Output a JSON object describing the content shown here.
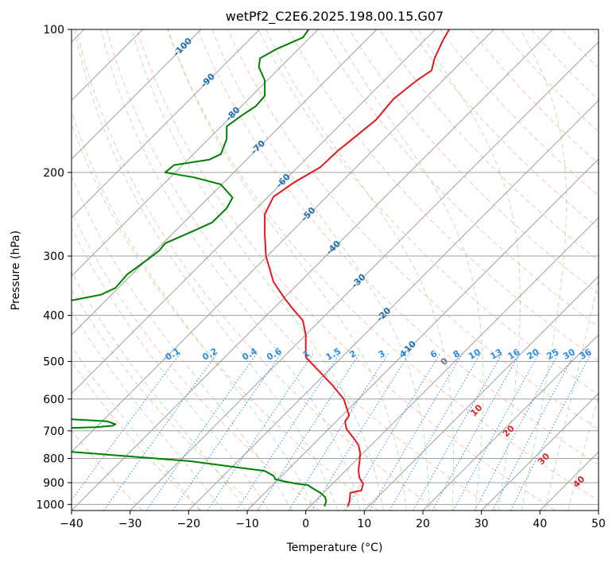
{
  "chart_data": {
    "type": "line",
    "title": "wetPf2_C2E6.2025.198.00.15.G07",
    "xlabel": "Temperature (°C)",
    "ylabel": "Pressure (hPa)",
    "xlim": [
      -40,
      50
    ],
    "ylim": [
      1030,
      100
    ],
    "y_scale": "log",
    "grid": true,
    "xticks": [
      "−40",
      "−30",
      "−20",
      "−10",
      "0",
      "10",
      "20",
      "30",
      "40",
      "50"
    ],
    "xtick_values": [
      -40,
      -30,
      -20,
      -10,
      0,
      10,
      20,
      30,
      40,
      50
    ],
    "yticks": [
      "100",
      "200",
      "300",
      "400",
      "500",
      "600",
      "700",
      "800",
      "900",
      "1000"
    ],
    "ytick_values": [
      100,
      200,
      300,
      400,
      500,
      600,
      700,
      800,
      900,
      1000
    ],
    "isotherm_label_values": [
      -100,
      -90,
      -80,
      -70,
      -60,
      -50,
      -40,
      -30,
      -20,
      -10
    ],
    "isotherm_labels": [
      "-100",
      "-90",
      "-80",
      "-70",
      "-60",
      "-50",
      "-40",
      "-30",
      "-20",
      "-10"
    ],
    "mixing_ratio_label_values": [
      0.1,
      0.2,
      0.4,
      0.6,
      1,
      1.5,
      2,
      3,
      4,
      6,
      8,
      10,
      13,
      16,
      20,
      25,
      30,
      36
    ],
    "mixing_ratio_labels": [
      "0.1",
      "0.2",
      "0.4",
      "0.6",
      "1",
      "1.5",
      "2",
      "3",
      "4",
      "6",
      "8",
      "10",
      "13",
      "16",
      "20",
      "25",
      "30",
      "36"
    ],
    "moist_adiabat_labels": [
      {
        "text": "0",
        "t": 24,
        "p": 505
      },
      {
        "text": "10",
        "t": 29.5,
        "p": 640
      },
      {
        "text": "20",
        "t": 35,
        "p": 708
      },
      {
        "text": "30",
        "t": 41,
        "p": 810
      },
      {
        "text": "40",
        "t": 47,
        "p": 905
      }
    ],
    "series": [
      {
        "name": "",
        "color": "#e31a1c",
        "points": [
          [
            7.2,
            1010
          ],
          [
            7.5,
            980
          ],
          [
            7.6,
            945
          ],
          [
            9.5,
            935
          ],
          [
            9.8,
            905
          ],
          [
            9.2,
            880
          ],
          [
            9.0,
            850
          ],
          [
            9.2,
            810
          ],
          [
            9.3,
            780
          ],
          [
            9.0,
            750
          ],
          [
            8.0,
            720
          ],
          [
            7.0,
            695
          ],
          [
            6.7,
            670
          ],
          [
            7.4,
            650
          ],
          [
            6.5,
            600
          ],
          [
            4.5,
            560
          ],
          [
            2.0,
            520
          ],
          [
            0.0,
            490
          ],
          [
            0.0,
            460
          ],
          [
            0.0,
            440
          ],
          [
            -0.5,
            410
          ],
          [
            -2.0,
            390
          ],
          [
            -3.5,
            370
          ],
          [
            -5.5,
            340
          ],
          [
            -6.8,
            300
          ],
          [
            -7.0,
            270
          ],
          [
            -7.0,
            245
          ],
          [
            -5.5,
            225
          ],
          [
            -2.0,
            210
          ],
          [
            2.5,
            195
          ],
          [
            5.5,
            180
          ],
          [
            8.0,
            170
          ],
          [
            12.0,
            155
          ],
          [
            15.0,
            140
          ],
          [
            19.0,
            128
          ],
          [
            21.5,
            122
          ],
          [
            22.0,
            115
          ],
          [
            23.5,
            105
          ],
          [
            24.5,
            100
          ]
        ]
      },
      {
        "name": "",
        "color": "#008000",
        "points": [
          [
            3.2,
            1010
          ],
          [
            3.5,
            985
          ],
          [
            3.3,
            965
          ],
          [
            2.5,
            945
          ],
          [
            1.2,
            925
          ],
          [
            0.3,
            910
          ],
          [
            -1.5,
            905
          ],
          [
            -3.5,
            895
          ],
          [
            -5.2,
            885
          ],
          [
            -5.5,
            870
          ],
          [
            -7.0,
            850
          ],
          [
            -20.0,
            810
          ],
          [
            -40.0,
            775
          ]
        ]
      },
      {
        "name": "",
        "color": "#008000",
        "points": [
          [
            -40.0,
            690
          ],
          [
            -36.0,
            688
          ],
          [
            -33.0,
            683
          ],
          [
            -32.5,
            678
          ],
          [
            -34.0,
            668
          ],
          [
            -40.0,
            662
          ]
        ]
      },
      {
        "name": "",
        "color": "#008000",
        "points": [
          [
            -40.0,
            372
          ],
          [
            -35.0,
            362
          ],
          [
            -32.5,
            350
          ],
          [
            -30.5,
            328
          ],
          [
            -27.0,
            305
          ],
          [
            -25.0,
            292
          ],
          [
            -24.0,
            282
          ],
          [
            -19.0,
            265
          ],
          [
            -16.0,
            255
          ],
          [
            -13.5,
            238
          ],
          [
            -12.5,
            226
          ],
          [
            -14.5,
            212
          ],
          [
            -19.0,
            205
          ],
          [
            -24.0,
            200
          ],
          [
            -22.5,
            193
          ],
          [
            -16.5,
            188
          ],
          [
            -14.5,
            183
          ],
          [
            -13.5,
            170
          ],
          [
            -13.5,
            160
          ],
          [
            -11.0,
            152
          ],
          [
            -8.5,
            145
          ],
          [
            -7.0,
            138
          ],
          [
            -7.0,
            128
          ],
          [
            -8.0,
            120
          ],
          [
            -7.8,
            115
          ],
          [
            -5.0,
            110
          ],
          [
            -0.5,
            104
          ],
          [
            0.5,
            100
          ]
        ]
      }
    ]
  }
}
